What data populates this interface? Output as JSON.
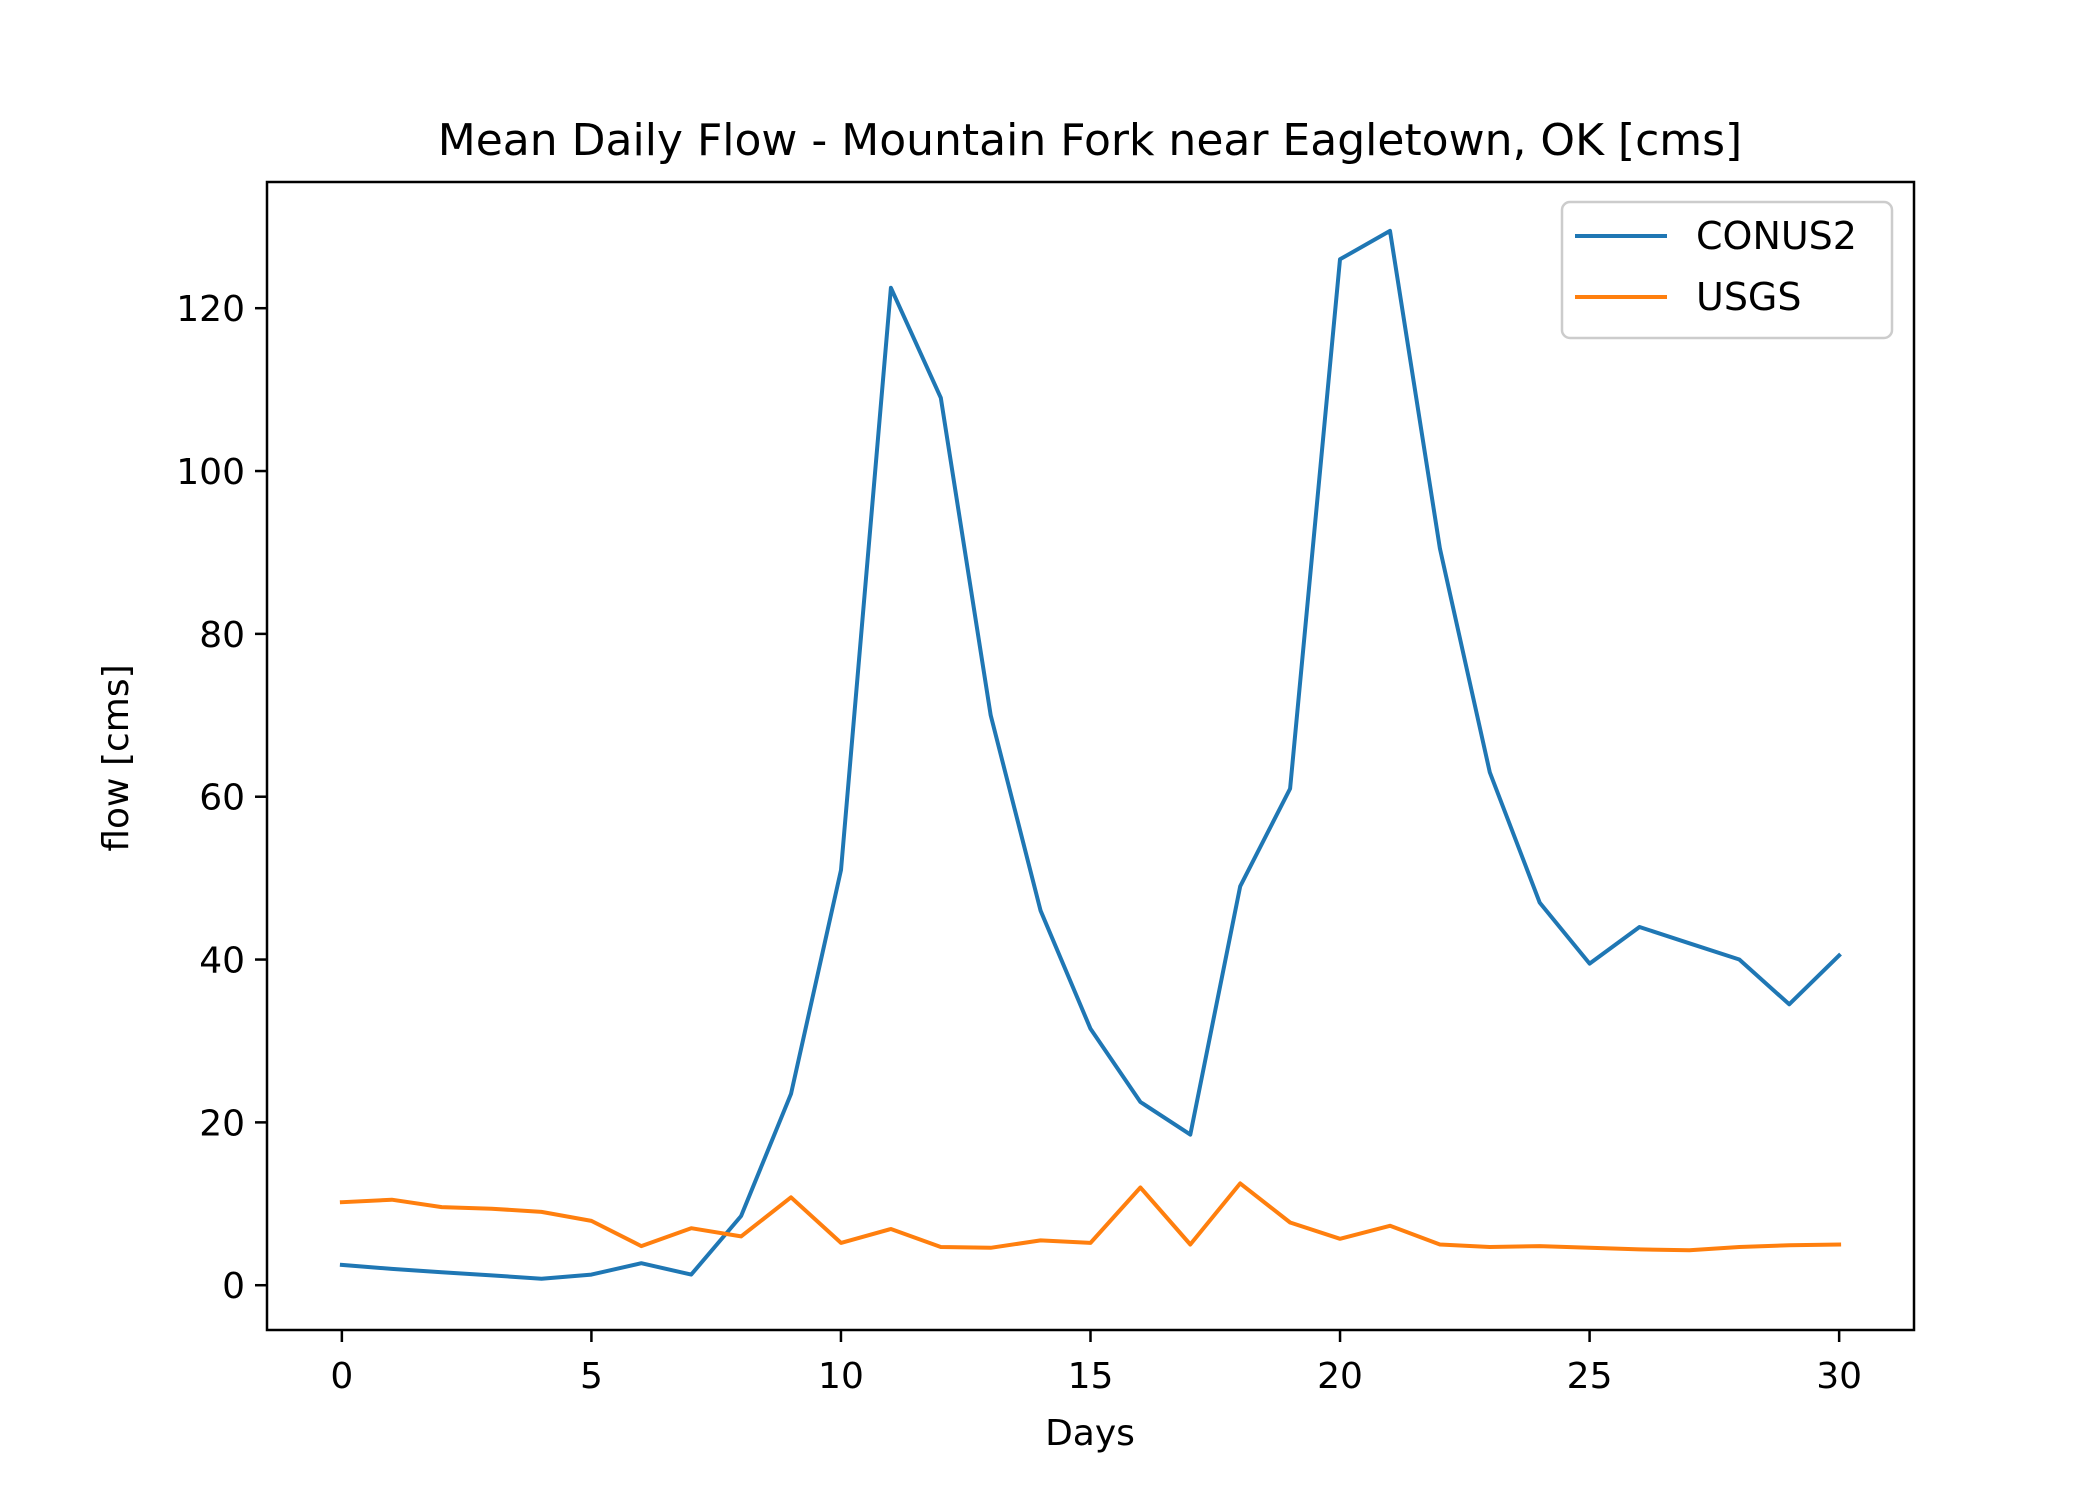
{
  "chart_data": {
    "type": "line",
    "title": "Mean Daily Flow - Mountain Fork near Eagletown, OK [cms]",
    "xlabel": "Days",
    "ylabel": "flow [cms]",
    "xlim": [
      -1.5,
      31.5
    ],
    "ylim": [
      -5.5,
      135.5
    ],
    "xticks": [
      0,
      5,
      10,
      15,
      20,
      25,
      30
    ],
    "yticks": [
      0,
      20,
      40,
      60,
      80,
      100,
      120
    ],
    "grid": false,
    "legend_position": "top-right",
    "x": [
      0,
      1,
      2,
      3,
      4,
      5,
      6,
      7,
      8,
      9,
      10,
      11,
      12,
      13,
      14,
      15,
      16,
      17,
      18,
      19,
      20,
      21,
      22,
      23,
      24,
      25,
      26,
      27,
      28,
      29,
      30
    ],
    "series": [
      {
        "name": "CONUS2",
        "color": "#1f77b4",
        "values": [
          2.5,
          2.0,
          1.6,
          1.2,
          0.8,
          1.3,
          2.7,
          1.3,
          8.5,
          23.5,
          51.0,
          122.5,
          109.0,
          70.0,
          46.0,
          31.5,
          22.5,
          18.5,
          49.0,
          61.0,
          126.0,
          129.5,
          90.5,
          63.0,
          47.0,
          39.5,
          44.0,
          42.0,
          40.0,
          34.5,
          40.5
        ]
      },
      {
        "name": "USGS",
        "color": "#ff7f0e",
        "values": [
          10.2,
          10.5,
          9.6,
          9.4,
          9.0,
          7.9,
          4.8,
          7.0,
          6.0,
          10.8,
          5.2,
          6.9,
          4.7,
          4.6,
          5.5,
          5.2,
          12.0,
          5.0,
          12.5,
          7.7,
          5.7,
          7.3,
          5.0,
          4.7,
          4.8,
          4.6,
          4.4,
          4.3,
          4.7,
          4.9,
          5.0
        ]
      }
    ]
  }
}
